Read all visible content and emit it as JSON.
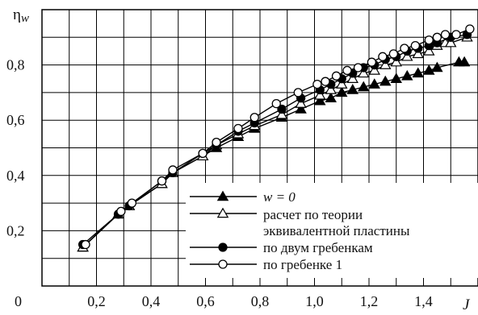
{
  "chart_data": {
    "type": "line",
    "title": "",
    "ylabel_main": "η",
    "ylabel_sub": "w",
    "xlabel": "J",
    "origin_label": "0",
    "xlim": [
      0.0,
      1.6
    ],
    "ylim": [
      0.0,
      1.0
    ],
    "x_ticks": [
      0.2,
      0.4,
      0.6,
      0.8,
      1.0,
      1.2,
      1.4
    ],
    "x_tick_labels": [
      "0,2",
      "0,4",
      "0,6",
      "0,8",
      "1,0",
      "1,2",
      "1,4"
    ],
    "y_ticks": [
      0.2,
      0.4,
      0.6,
      0.8
    ],
    "y_tick_labels": [
      "0,2",
      "0,4",
      "0,6",
      "0,8"
    ],
    "grid": true,
    "legend_position": "bottom-right",
    "series": [
      {
        "name": "w = 0",
        "marker": "filled-triangle",
        "points": [
          [
            0.15,
            0.14
          ],
          [
            0.28,
            0.26
          ],
          [
            0.32,
            0.29
          ],
          [
            0.44,
            0.37
          ],
          [
            0.48,
            0.41
          ],
          [
            0.59,
            0.47
          ],
          [
            0.64,
            0.5
          ],
          [
            0.72,
            0.54
          ],
          [
            0.78,
            0.57
          ],
          [
            0.88,
            0.61
          ],
          [
            0.95,
            0.64
          ],
          [
            1.02,
            0.67
          ],
          [
            1.06,
            0.68
          ],
          [
            1.1,
            0.7
          ],
          [
            1.14,
            0.71
          ],
          [
            1.18,
            0.72
          ],
          [
            1.22,
            0.73
          ],
          [
            1.26,
            0.74
          ],
          [
            1.3,
            0.75
          ],
          [
            1.34,
            0.76
          ],
          [
            1.38,
            0.77
          ],
          [
            1.42,
            0.78
          ],
          [
            1.45,
            0.79
          ],
          [
            1.53,
            0.81
          ],
          [
            1.55,
            0.81
          ]
        ]
      },
      {
        "name_lines": [
          "расчет по теории",
          "эквивалентной пластины"
        ],
        "marker": "open-triangle",
        "points": [
          [
            0.15,
            0.14
          ],
          [
            0.28,
            0.26
          ],
          [
            0.32,
            0.29
          ],
          [
            0.44,
            0.37
          ],
          [
            0.48,
            0.41
          ],
          [
            0.59,
            0.47
          ],
          [
            0.64,
            0.51
          ],
          [
            0.72,
            0.55
          ],
          [
            0.78,
            0.58
          ],
          [
            0.88,
            0.62
          ],
          [
            0.95,
            0.66
          ],
          [
            1.02,
            0.69
          ],
          [
            1.06,
            0.71
          ],
          [
            1.1,
            0.73
          ],
          [
            1.14,
            0.75
          ],
          [
            1.18,
            0.77
          ],
          [
            1.22,
            0.78
          ],
          [
            1.26,
            0.8
          ],
          [
            1.3,
            0.81
          ],
          [
            1.34,
            0.83
          ],
          [
            1.38,
            0.84
          ],
          [
            1.42,
            0.85
          ],
          [
            1.45,
            0.87
          ],
          [
            1.48,
            0.88
          ],
          [
            1.5,
            0.88
          ],
          [
            1.56,
            0.9
          ]
        ]
      },
      {
        "name": "по двум гребенкам",
        "marker": "filled-circle",
        "points": [
          [
            0.15,
            0.15
          ],
          [
            0.28,
            0.26
          ],
          [
            0.32,
            0.29
          ],
          [
            0.44,
            0.38
          ],
          [
            0.48,
            0.41
          ],
          [
            0.59,
            0.48
          ],
          [
            0.64,
            0.51
          ],
          [
            0.72,
            0.56
          ],
          [
            0.78,
            0.59
          ],
          [
            0.88,
            0.64
          ],
          [
            0.95,
            0.68
          ],
          [
            1.02,
            0.71
          ],
          [
            1.06,
            0.73
          ],
          [
            1.1,
            0.75
          ],
          [
            1.14,
            0.77
          ],
          [
            1.18,
            0.79
          ],
          [
            1.22,
            0.8
          ],
          [
            1.26,
            0.82
          ],
          [
            1.3,
            0.83
          ],
          [
            1.34,
            0.85
          ],
          [
            1.38,
            0.86
          ],
          [
            1.42,
            0.87
          ],
          [
            1.45,
            0.88
          ],
          [
            1.5,
            0.9
          ],
          [
            1.56,
            0.91
          ]
        ]
      },
      {
        "name": "по гребенке 1",
        "marker": "open-circle",
        "points": [
          [
            0.16,
            0.15
          ],
          [
            0.29,
            0.27
          ],
          [
            0.33,
            0.3
          ],
          [
            0.44,
            0.38
          ],
          [
            0.48,
            0.42
          ],
          [
            0.59,
            0.48
          ],
          [
            0.64,
            0.52
          ],
          [
            0.72,
            0.57
          ],
          [
            0.78,
            0.61
          ],
          [
            0.86,
            0.66
          ],
          [
            0.94,
            0.7
          ],
          [
            1.01,
            0.73
          ],
          [
            1.04,
            0.74
          ],
          [
            1.08,
            0.76
          ],
          [
            1.12,
            0.78
          ],
          [
            1.16,
            0.79
          ],
          [
            1.21,
            0.81
          ],
          [
            1.25,
            0.83
          ],
          [
            1.29,
            0.84
          ],
          [
            1.33,
            0.86
          ],
          [
            1.37,
            0.87
          ],
          [
            1.42,
            0.89
          ],
          [
            1.45,
            0.9
          ],
          [
            1.48,
            0.91
          ],
          [
            1.52,
            0.91
          ],
          [
            1.57,
            0.93
          ]
        ]
      }
    ]
  }
}
